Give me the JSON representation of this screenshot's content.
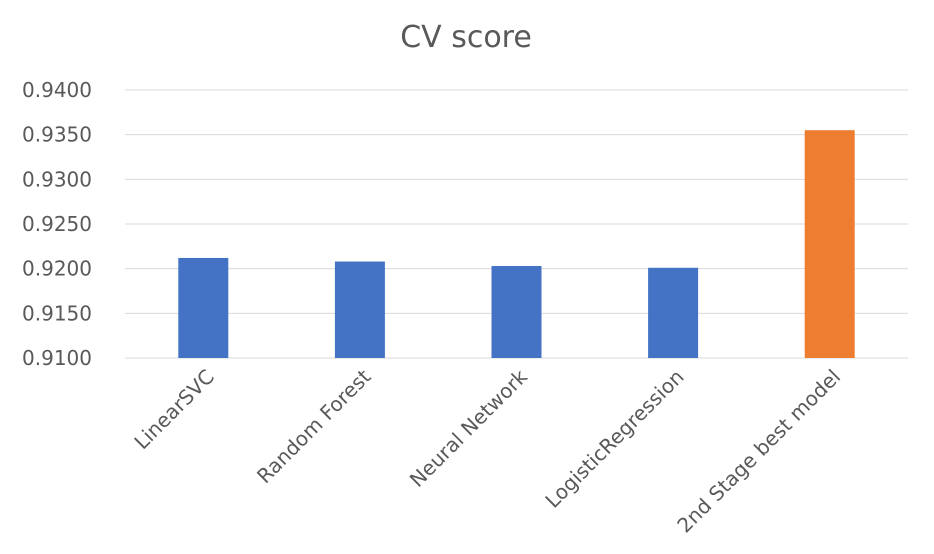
{
  "chart_data": {
    "type": "bar",
    "title": "CV score",
    "xlabel": "",
    "ylabel": "",
    "categories": [
      "LinearSVC",
      "Random Forest",
      "Neural Network",
      "LogisticRegression",
      "2nd Stage best model"
    ],
    "values": [
      0.9212,
      0.9208,
      0.9203,
      0.9201,
      0.9355
    ],
    "bar_colors": [
      "#4472C4",
      "#4472C4",
      "#4472C4",
      "#4472C4",
      "#ED7D31"
    ],
    "ylim": [
      0.91,
      0.94
    ],
    "yticks": [
      "0.9100",
      "0.9150",
      "0.9200",
      "0.9250",
      "0.9300",
      "0.9350",
      "0.9400"
    ],
    "ytick_values": [
      0.91,
      0.915,
      0.92,
      0.925,
      0.93,
      0.935,
      0.94
    ],
    "grid": true,
    "gridline_color": "#D9D9D9",
    "legend": "none"
  }
}
